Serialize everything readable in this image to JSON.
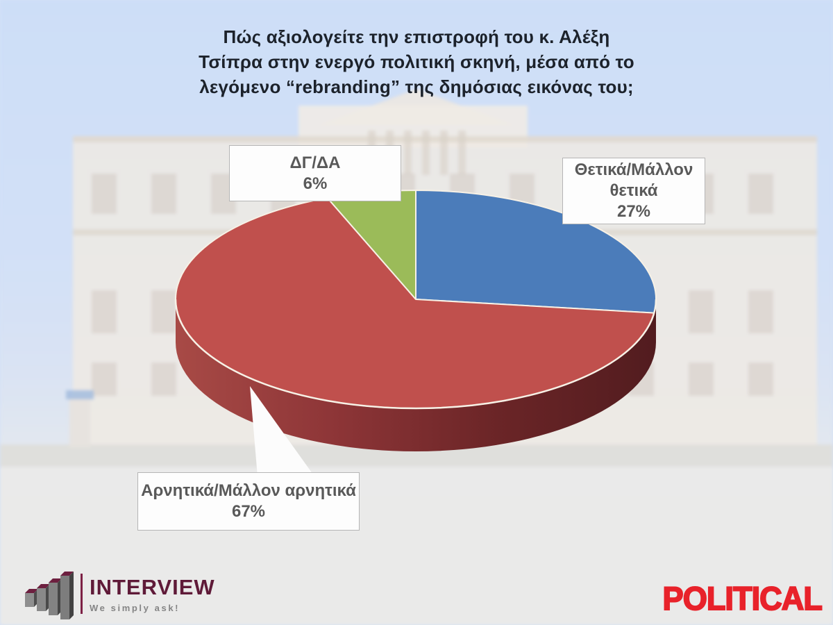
{
  "title": {
    "lines": [
      "Πώς αξιολογείτε την επιστροφή του κ. Αλέξη",
      "Τσίπρα στην ενεργό πολιτική σκηνή, μέσα από το",
      "λεγόμενο “rebranding” της δημόσιας εικόνας του;"
    ]
  },
  "chart_data": {
    "type": "pie",
    "style": "3d",
    "title": "Πώς αξιολογείτε την επιστροφή του κ. Αλέξη Τσίπρα στην ενεργό πολιτική σκηνή, μέσα από το λεγόμενο “rebranding” της δημόσιας εικόνας του;",
    "start_angle_deg": 0,
    "direction": "clockwise",
    "slices": [
      {
        "label": "Θετικά/Μάλλον θετικά",
        "value": 27,
        "color": "#4b7cba",
        "key": "positive"
      },
      {
        "label": "Αρνητικά/Μάλλον αρνητικά",
        "value": 67,
        "color": "#c0504d",
        "key": "negative"
      },
      {
        "label": "ΔΓ/ΔΑ",
        "value": 6,
        "color": "#9bbb59",
        "key": "dk"
      }
    ],
    "rim_colors": [
      "#a84a46",
      "#8d3537",
      "#6b2527",
      "#521c1f"
    ],
    "outline_color": "#f7f1e6"
  },
  "callouts": {
    "dk": {
      "lines": [
        "ΔΓ/ΔΑ",
        "6%"
      ]
    },
    "positive": {
      "lines": [
        "Θετικά/Μάλλον",
        "θετικά",
        "27%"
      ]
    },
    "negative": {
      "lines": [
        "Αρνητικά/Μάλλον αρνητικά",
        "67%"
      ]
    }
  },
  "footer": {
    "interview": {
      "brand": "INTERVIEW",
      "tagline": "We simply ask!"
    },
    "political": {
      "brand": "POLITICAL"
    }
  }
}
